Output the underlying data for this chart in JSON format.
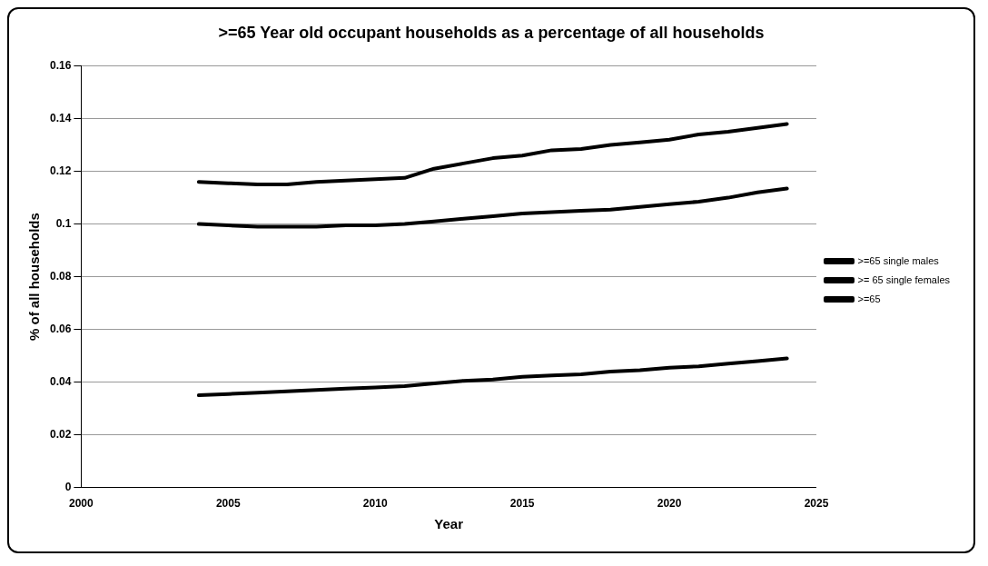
{
  "chart_data": {
    "type": "line",
    "title": ">=65 Year old occupant households as a percentage of all households",
    "xlabel": "Year",
    "ylabel": "% of all households",
    "x": [
      2004,
      2005,
      2006,
      2007,
      2008,
      2009,
      2010,
      2011,
      2012,
      2013,
      2014,
      2015,
      2016,
      2017,
      2018,
      2019,
      2020,
      2021,
      2022,
      2023,
      2024
    ],
    "series": [
      {
        "name": ">=65 single males",
        "color": "#000000",
        "values": [
          0.035,
          0.0355,
          0.036,
          0.0365,
          0.037,
          0.0375,
          0.038,
          0.0385,
          0.0395,
          0.0405,
          0.041,
          0.042,
          0.0425,
          0.043,
          0.044,
          0.0445,
          0.0455,
          0.046,
          0.047,
          0.048,
          0.049
        ]
      },
      {
        "name": ">= 65 single females",
        "color": "#000000",
        "values": [
          0.1,
          0.0995,
          0.099,
          0.099,
          0.099,
          0.0995,
          0.0995,
          0.1,
          0.101,
          0.102,
          0.103,
          0.104,
          0.1045,
          0.105,
          0.1055,
          0.1065,
          0.1075,
          0.1085,
          0.11,
          0.112,
          0.1135
        ]
      },
      {
        "name": ">=65",
        "color": "#000000",
        "values": [
          0.116,
          0.1155,
          0.115,
          0.115,
          0.116,
          0.1165,
          0.117,
          0.1175,
          0.121,
          0.123,
          0.125,
          0.126,
          0.128,
          0.1285,
          0.13,
          0.131,
          0.132,
          0.134,
          0.135,
          0.1365,
          0.138
        ]
      }
    ],
    "xlim": [
      2000,
      2025
    ],
    "xticks": [
      2000,
      2005,
      2010,
      2015,
      2020,
      2025
    ],
    "ylim": [
      0,
      0.16
    ],
    "yticks": [
      0,
      0.02,
      0.04,
      0.06,
      0.08,
      0.1,
      0.12,
      0.14,
      0.16
    ],
    "grid": "y",
    "legend": "right",
    "marker": "none",
    "line_style": "solid"
  }
}
